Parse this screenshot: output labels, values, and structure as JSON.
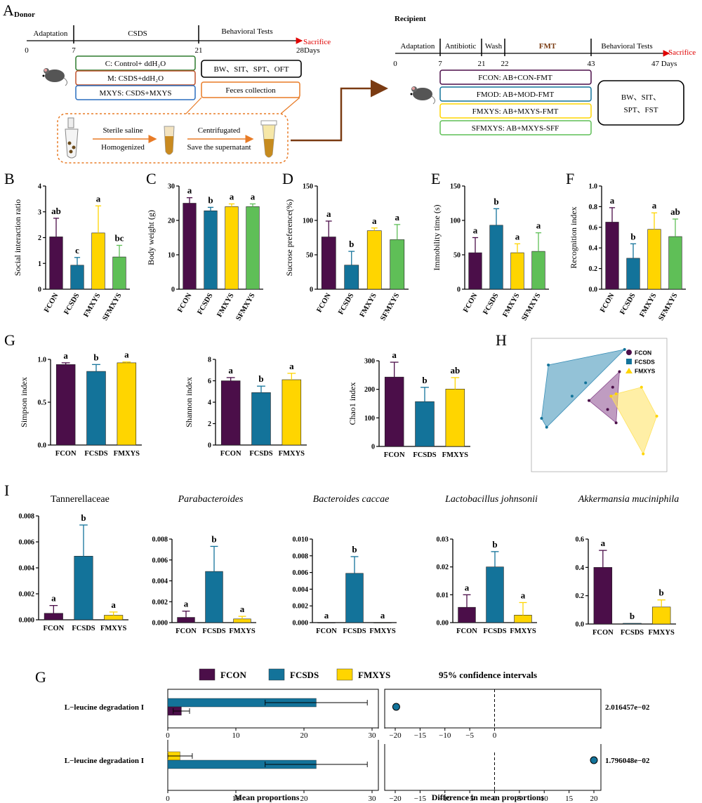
{
  "colors": {
    "FCON": "#4b0e49",
    "FCSDS": "#13739a",
    "FMXYS": "#ffd500",
    "SFMXYS": "#5fbf57",
    "arrow_orange": "#e87b26",
    "arrow_brown": "#7a3b12",
    "sacrifice_red": "#e00000",
    "fmt_label": "#7a3b12"
  },
  "panel_a": {
    "letter": "A",
    "donor": {
      "title": "Donor",
      "phase_labels": [
        "Adaptation",
        "CSDS",
        "Behavioral Tests"
      ],
      "day_ticks": [
        "0",
        "7",
        "21",
        "28Days"
      ],
      "sacrifice": "Sacrifice",
      "groups": [
        "C: Control+ ddH₂O",
        "M: CSDS+ddH₂O",
        "MXYS: CSDS+MXYS"
      ],
      "tests_box": "BW、SIT、SPT、OFT",
      "feces_box": "Feces collection",
      "process": [
        "Sterile saline",
        "Homogenized",
        "Centrifugated",
        "Save the supernatant"
      ]
    },
    "recipient": {
      "title": "Recipient",
      "phase_labels": [
        "Adaptation",
        "Antibiotic",
        "Wash",
        "FMT",
        "Behavioral Tests"
      ],
      "day_ticks": [
        "0",
        "7",
        "21",
        "22",
        "43",
        "47 Days"
      ],
      "sacrifice": "Sacrifice",
      "groups": [
        "FCON: AB+CON-FMT",
        "FMOD: AB+MOD-FMT",
        "FMXYS: AB+MXYS-FMT",
        "SFMXYS: AB+MXYS-SFF"
      ],
      "tests_box_line1": "BW、SIT、",
      "tests_box_line2": "SPT、FST"
    }
  },
  "chart_data": [
    {
      "panel": "B",
      "type": "bar",
      "ylabel": "Social interaction ratio",
      "categories": [
        "FCON",
        "FCSDS",
        "FMXYS",
        "SFMXYS"
      ],
      "values": [
        2.03,
        0.93,
        2.18,
        1.25
      ],
      "errors": [
        0.72,
        0.3,
        1.05,
        0.45
      ],
      "letters": [
        "ab",
        "c",
        "a",
        "bc"
      ],
      "ylim": [
        0,
        4
      ],
      "yticks": [
        "0",
        "1",
        "2",
        "3",
        "4"
      ]
    },
    {
      "panel": "C",
      "type": "bar",
      "ylabel": "Body weight (g)",
      "categories": [
        "FCON",
        "FCSDS",
        "FMXYS",
        "SFMXYS"
      ],
      "values": [
        25,
        22.8,
        24,
        24
      ],
      "errors": [
        1.6,
        1,
        0.8,
        0.8
      ],
      "letters": [
        "a",
        "b",
        "a",
        "a"
      ],
      "ylim": [
        0,
        30
      ],
      "yticks": [
        "0",
        "10",
        "20",
        "30"
      ]
    },
    {
      "panel": "D",
      "type": "bar",
      "ylabel": "Sucrose preference(%)",
      "categories": [
        "FCON",
        "FCSDS",
        "FMXYS",
        "SFMXYS"
      ],
      "values": [
        76,
        35,
        85,
        72
      ],
      "errors": [
        23,
        20,
        4,
        22
      ],
      "letters": [
        "a",
        "b",
        "a",
        "a"
      ],
      "ylim": [
        0,
        150
      ],
      "yticks": [
        "0",
        "50",
        "100",
        "150"
      ]
    },
    {
      "panel": "E",
      "type": "bar",
      "ylabel": "Immobility time (s)",
      "categories": [
        "FCON",
        "FCSDS",
        "FMXYS",
        "SFMXYS"
      ],
      "values": [
        53,
        93,
        53,
        55
      ],
      "errors": [
        22,
        24,
        13,
        27
      ],
      "letters": [
        "a",
        "b",
        "a",
        "a"
      ],
      "ylim": [
        0,
        150
      ],
      "yticks": [
        "0",
        "50",
        "100",
        "150"
      ]
    },
    {
      "panel": "F",
      "type": "bar",
      "ylabel": "Recognition index",
      "categories": [
        "FCON",
        "FCSDS",
        "FMXYS",
        "SFMXYS"
      ],
      "values": [
        0.65,
        0.3,
        0.58,
        0.51
      ],
      "errors": [
        0.14,
        0.14,
        0.16,
        0.17
      ],
      "letters": [
        "a",
        "b",
        "a",
        "ab"
      ],
      "ylim": [
        0,
        1.0
      ],
      "yticks": [
        "0.0",
        "0.2",
        "0.4",
        "0.6",
        "0.8",
        "1.0"
      ]
    },
    {
      "panel": "G",
      "type": "bar",
      "ylabel": "Simpson index",
      "categories": [
        "FCON",
        "FCSDS",
        "FMXYS"
      ],
      "values": [
        0.94,
        0.86,
        0.96
      ],
      "errors": [
        0.02,
        0.08,
        0.01
      ],
      "letters": [
        "a",
        "b",
        "a"
      ],
      "ylim": [
        0,
        1.0
      ],
      "yticks": [
        "0.0",
        "0.5",
        "1.0"
      ]
    },
    {
      "panel": "G2",
      "type": "bar",
      "ylabel": "Shannon index",
      "categories": [
        "FCON",
        "FCSDS",
        "FMXYS"
      ],
      "values": [
        6,
        4.9,
        6.1
      ],
      "errors": [
        0.3,
        0.6,
        0.6
      ],
      "letters": [
        "a",
        "b",
        "a"
      ],
      "ylim": [
        0,
        8
      ],
      "yticks": [
        "0",
        "2",
        "4",
        "6",
        "8"
      ]
    },
    {
      "panel": "G3",
      "type": "bar",
      "ylabel": "Chao1 index",
      "categories": [
        "FCON",
        "FCSDS",
        "FMXYS"
      ],
      "values": [
        243,
        157,
        201
      ],
      "errors": [
        52,
        50,
        40
      ],
      "letters": [
        "a",
        "b",
        "ab"
      ],
      "ylim": [
        0,
        300
      ],
      "yticks": [
        "0",
        "100",
        "200",
        "300"
      ]
    },
    {
      "panel": "I1",
      "type": "bar",
      "title": "Tannerellaceae",
      "italic": false,
      "categories": [
        "FCON",
        "FCSDS",
        "FMXYS"
      ],
      "values": [
        0.0005,
        0.0049,
        0.00035
      ],
      "errors": [
        0.0006,
        0.0024,
        0.00025
      ],
      "letters": [
        "a",
        "b",
        "a"
      ],
      "ylim": [
        0,
        0.008
      ],
      "yticks": [
        "0.000",
        "0.002",
        "0.004",
        "0.006",
        "0.008"
      ]
    },
    {
      "panel": "I2",
      "type": "bar",
      "title": "Parabacteroides",
      "italic": true,
      "categories": [
        "FCON",
        "FCSDS",
        "FMXYS"
      ],
      "values": [
        0.0005,
        0.0049,
        0.00035
      ],
      "errors": [
        0.0006,
        0.0024,
        0.00025
      ],
      "letters": [
        "a",
        "b",
        "a"
      ],
      "ylim": [
        0,
        0.008
      ],
      "yticks": [
        "0.000",
        "0.002",
        "0.004",
        "0.006",
        "0.008"
      ]
    },
    {
      "panel": "I3",
      "type": "bar",
      "title": "Bacteroides caccae",
      "italic": true,
      "categories": [
        "FCON",
        "FCSDS",
        "FMXYS"
      ],
      "values": [
        0,
        0.0059,
        0
      ],
      "errors": [
        0,
        0.002,
        0
      ],
      "letters": [
        "a",
        "b",
        "a"
      ],
      "ylim": [
        0,
        0.01
      ],
      "yticks": [
        "0.000",
        "0.002",
        "0.004",
        "0.006",
        "0.008",
        "0.010"
      ]
    },
    {
      "panel": "I4",
      "type": "bar",
      "title": "Lactobacillus johnsonii",
      "italic": true,
      "categories": [
        "FCON",
        "FCSDS",
        "FMXYS"
      ],
      "values": [
        0.0055,
        0.02,
        0.0027
      ],
      "errors": [
        0.0045,
        0.0055,
        0.0045
      ],
      "letters": [
        "a",
        "b",
        "a"
      ],
      "ylim": [
        0,
        0.03
      ],
      "yticks": [
        "0.00",
        "0.01",
        "0.02",
        "0.03"
      ]
    },
    {
      "panel": "I5",
      "type": "bar",
      "title": "Akkermansia muciniphila",
      "italic": true,
      "categories": [
        "FCON",
        "FCSDS",
        "FMXYS"
      ],
      "values": [
        0.4,
        0.005,
        0.12
      ],
      "errors": [
        0.12,
        0,
        0.05
      ],
      "letters": [
        "a",
        "b",
        "b"
      ],
      "ylim": [
        0,
        0.6
      ],
      "yticks": [
        "0.0",
        "0.2",
        "0.4",
        "0.6"
      ]
    },
    {
      "panel": "H",
      "type": "scatter",
      "legend": [
        "FCON",
        "FCSDS",
        "FMXYS"
      ],
      "groups": [
        {
          "name": "FCON",
          "points": [
            [
              -0.06,
              0.02
            ],
            [
              0.08,
              0.08
            ],
            [
              0.12,
              0.15
            ],
            [
              0.05,
              -0.02
            ],
            [
              0.1,
              -0.08
            ]
          ]
        },
        {
          "name": "FCSDS",
          "points": [
            [
              -0.3,
              0.18
            ],
            [
              -0.31,
              -0.1
            ],
            [
              -0.16,
              0.04
            ],
            [
              0.15,
              0.25
            ],
            [
              -0.34,
              -0.06
            ],
            [
              -0.08,
              0.1
            ]
          ]
        },
        {
          "name": "FMXYS",
          "points": [
            [
              0.07,
              0.04
            ],
            [
              0.25,
              0.08
            ],
            [
              0.34,
              -0.05
            ],
            [
              0.26,
              -0.22
            ],
            [
              0.1,
              0.05
            ]
          ]
        }
      ]
    },
    {
      "panel": "G_bottom",
      "type": "bar",
      "orientation": "horizontal",
      "rows": [
        {
          "label": "L−leucine degradation I",
          "pair": [
            "FCSDS",
            "FCON"
          ],
          "means": [
            21.8,
            2.0
          ],
          "errors": [
            7.5,
            1.2
          ],
          "diff": -19.8,
          "p": "2.016457e−02"
        },
        {
          "label": "L−leucine degradation I",
          "pair": [
            "FMXYS",
            "FCSDS"
          ],
          "means": [
            1.8,
            21.8
          ],
          "errors": [
            1.8,
            7.5
          ],
          "diff": 20.0,
          "p": "1.796048e−02"
        }
      ],
      "xlabel_left": "Mean proportions",
      "xticks_left": [
        "0",
        "10",
        "20",
        "30"
      ],
      "xlabel_right": "Difference in mean proportions",
      "xticks_right": [
        "−20",
        "−15",
        "−10",
        "−5",
        "0",
        "5",
        "10",
        "15",
        "20"
      ],
      "legend": [
        "FCON",
        "FCSDS",
        "FMXYS"
      ],
      "ci_title": "95% confidence intervals"
    }
  ],
  "panel_letters": {
    "B": "B",
    "C": "C",
    "D": "D",
    "E": "E",
    "F": "F",
    "G": "G",
    "H": "H",
    "I": "I",
    "G2": "G"
  }
}
